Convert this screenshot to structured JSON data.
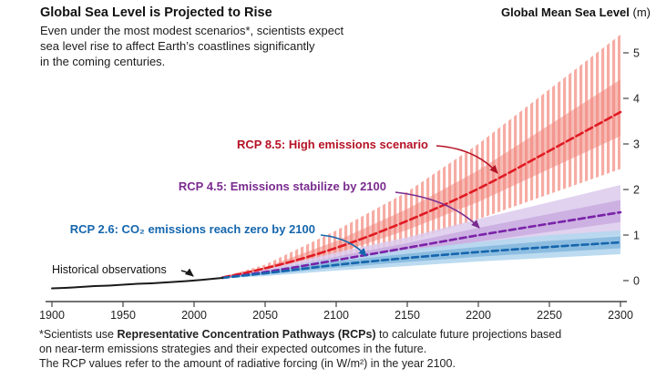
{
  "header": {
    "title": "Global Sea Level is Projected to Rise",
    "subtitle_lines": [
      "Even under the most modest scenarios*, scientists expect",
      "sea level rise to affect Earth’s coastlines significantly",
      "in the coming centuries."
    ],
    "y_axis_title_bold": "Global Mean Sea Level",
    "y_axis_title_unit": " (m)"
  },
  "annotations": {
    "rcp85": "RCP 8.5: High emissions scenario",
    "rcp45": "RCP 4.5: Emissions stabilize by 2100",
    "rcp26": "RCP 2.6: CO₂ emissions reach zero by 2100",
    "historical": "Historical observations"
  },
  "footnote": {
    "line1_pre": "*Scientists use ",
    "line1_bold": "Representative Concentration Pathways (RCPs)",
    "line1_post": " to calculate future projections based",
    "line2": "on near-term emissions strategies and their expected outcomes in the future.",
    "line3": "The RCP values refer to the amount of radiative forcing (in W/m²) in the year 2100."
  },
  "chart_data": {
    "type": "line",
    "title": "Global Sea Level is Projected to Rise",
    "ylabel": "Global Mean Sea Level (m)",
    "xlim": [
      1900,
      2300
    ],
    "ylim": [
      -0.3,
      5.6
    ],
    "x_ticks": [
      1900,
      1950,
      2000,
      2050,
      2100,
      2150,
      2200,
      2250,
      2300
    ],
    "y_ticks": [
      0,
      1,
      2,
      3,
      4,
      5
    ],
    "grid": false,
    "legend_position": "annotated-on-chart",
    "series": [
      {
        "id": "historical",
        "name": "Historical observations",
        "style": "solid",
        "x": [
          1900,
          1910,
          1920,
          1930,
          1940,
          1950,
          1960,
          1970,
          1980,
          1990,
          2000,
          2010,
          2020
        ],
        "values": [
          -0.17,
          -0.16,
          -0.14,
          -0.12,
          -0.11,
          -0.09,
          -0.07,
          -0.06,
          -0.04,
          -0.02,
          0,
          0.03,
          0.06
        ]
      },
      {
        "id": "rcp26",
        "name": "RCP 2.6: CO₂ emissions reach zero by 2100",
        "style": "dashed",
        "x": [
          2020,
          2050,
          2100,
          2150,
          2200,
          2250,
          2300
        ],
        "values": [
          0.06,
          0.16,
          0.35,
          0.5,
          0.63,
          0.74,
          0.84
        ],
        "band_low": [
          0.05,
          0.1,
          0.22,
          0.32,
          0.42,
          0.5,
          0.58
        ],
        "band_high": [
          0.07,
          0.22,
          0.5,
          0.68,
          0.85,
          1.0,
          1.1
        ]
      },
      {
        "id": "rcp45",
        "name": "RCP 4.5: Emissions stabilize by 2100",
        "style": "dashed",
        "x": [
          2020,
          2050,
          2100,
          2150,
          2200,
          2250,
          2300
        ],
        "values": [
          0.06,
          0.18,
          0.45,
          0.72,
          1.0,
          1.25,
          1.5
        ],
        "band_low": [
          0.05,
          0.12,
          0.3,
          0.48,
          0.68,
          0.85,
          1.02
        ],
        "band_high": [
          0.07,
          0.25,
          0.62,
          0.95,
          1.35,
          1.72,
          2.1
        ]
      },
      {
        "id": "rcp85",
        "name": "RCP 8.5: High emissions scenario",
        "style": "dashed",
        "x": [
          2020,
          2050,
          2100,
          2150,
          2200,
          2250,
          2300
        ],
        "values": [
          0.07,
          0.25,
          0.7,
          1.3,
          2.0,
          2.85,
          3.7
        ],
        "band_low": [
          0.06,
          0.18,
          0.45,
          0.85,
          1.35,
          1.9,
          2.45
        ],
        "band_high": [
          0.08,
          0.35,
          1.1,
          1.95,
          3.0,
          4.2,
          5.4
        ]
      }
    ],
    "colors": {
      "historical": "#1a1a1a",
      "rcp26_line": "#1565ad",
      "rcp26_band": "#b5d7ee",
      "rcp26_inner": "#7fb5dc",
      "rcp26_label": "#1566ad",
      "rcp45_line": "#7a22a8",
      "rcp45_band": "#dccaec",
      "rcp45_inner": "#c3a3dd",
      "rcp45_label": "#7a2b8f",
      "rcp85_line": "#e01a23",
      "rcp85_stripe": "#f6aca4",
      "rcp85_inner": "#f0877e",
      "rcp85_label": "#b51225",
      "axis": "#444444"
    }
  }
}
